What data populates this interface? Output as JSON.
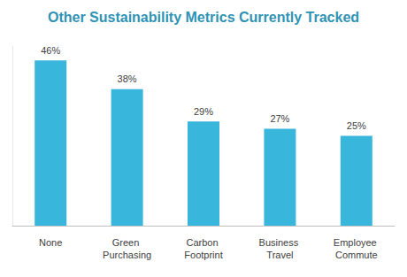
{
  "chart_data": {
    "type": "bar",
    "title": "Other Sustainability Metrics Currently Tracked",
    "categories": [
      "None",
      "Green Purchasing",
      "Carbon Footprint",
      "Business Travel",
      "Employee Commute"
    ],
    "values": [
      46,
      38,
      29,
      27,
      25
    ],
    "value_labels": [
      "46%",
      "38%",
      "29%",
      "27%",
      "25%"
    ],
    "color": "#38b6dc",
    "ylim": [
      0,
      50
    ],
    "grid": false,
    "data_labels": true,
    "tick_labels": "x"
  }
}
